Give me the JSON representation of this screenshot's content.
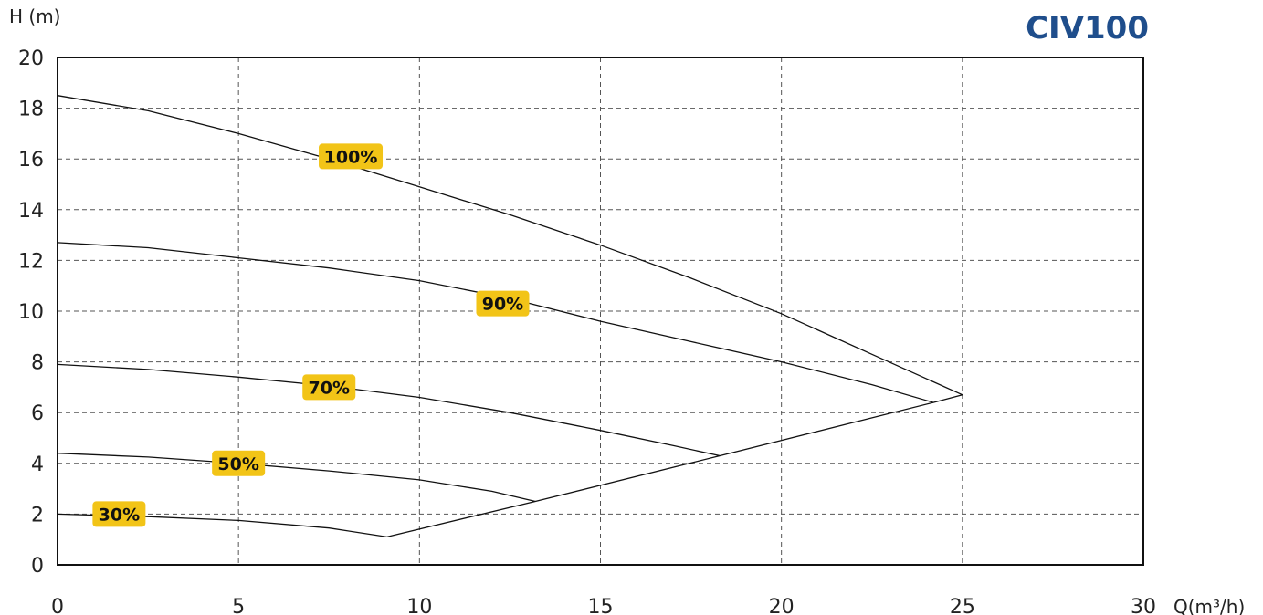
{
  "chart_data": {
    "type": "line",
    "title": "CIV100",
    "xlabel": "Q(m³/h)",
    "ylabel": "H (m)",
    "xlim": [
      0,
      30
    ],
    "ylim": [
      0,
      20
    ],
    "xticks": [
      0,
      5,
      10,
      15,
      20,
      25,
      30
    ],
    "yticks": [
      0,
      2,
      4,
      6,
      8,
      10,
      12,
      14,
      16,
      18,
      20
    ],
    "grid": true,
    "title_color": "#1f4e8c",
    "label_color": "#f2c417",
    "series": [
      {
        "name": "100%",
        "label_at": [
          8.1,
          16.1
        ],
        "points": [
          [
            0,
            18.5
          ],
          [
            2.5,
            17.9
          ],
          [
            5,
            17.0
          ],
          [
            7.5,
            16.0
          ],
          [
            10,
            14.9
          ],
          [
            12.5,
            13.8
          ],
          [
            15,
            12.6
          ],
          [
            17.5,
            11.3
          ],
          [
            20,
            9.9
          ],
          [
            22.5,
            8.3
          ],
          [
            25,
            6.7
          ]
        ]
      },
      {
        "name": "90%",
        "label_at": [
          12.3,
          10.3
        ],
        "points": [
          [
            0,
            12.7
          ],
          [
            2.5,
            12.5
          ],
          [
            5,
            12.1
          ],
          [
            7.5,
            11.7
          ],
          [
            10,
            11.2
          ],
          [
            12.5,
            10.5
          ],
          [
            15,
            9.6
          ],
          [
            17.5,
            8.8
          ],
          [
            20,
            8.0
          ],
          [
            22.5,
            7.1
          ],
          [
            24.2,
            6.4
          ]
        ]
      },
      {
        "name": "70%",
        "label_at": [
          7.5,
          7.0
        ],
        "points": [
          [
            0,
            7.9
          ],
          [
            2.5,
            7.7
          ],
          [
            5,
            7.4
          ],
          [
            7.5,
            7.05
          ],
          [
            10,
            6.6
          ],
          [
            12.5,
            6.0
          ],
          [
            15,
            5.3
          ],
          [
            17,
            4.7
          ],
          [
            18.3,
            4.3
          ]
        ]
      },
      {
        "name": "50%",
        "label_at": [
          5,
          4.0
        ],
        "points": [
          [
            0,
            4.4
          ],
          [
            2.5,
            4.25
          ],
          [
            5,
            4.0
          ],
          [
            7.5,
            3.7
          ],
          [
            10,
            3.35
          ],
          [
            12,
            2.9
          ],
          [
            13.2,
            2.5
          ]
        ]
      },
      {
        "name": "30%",
        "label_at": [
          1.7,
          2.0
        ],
        "points": [
          [
            0,
            2.0
          ],
          [
            2.5,
            1.9
          ],
          [
            5,
            1.75
          ],
          [
            7.5,
            1.45
          ],
          [
            9.1,
            1.1
          ]
        ]
      }
    ],
    "limit_line": [
      [
        9.1,
        1.1
      ],
      [
        13.2,
        2.5
      ],
      [
        18.3,
        4.3
      ],
      [
        24.2,
        6.4
      ],
      [
        25,
        6.7
      ]
    ]
  }
}
